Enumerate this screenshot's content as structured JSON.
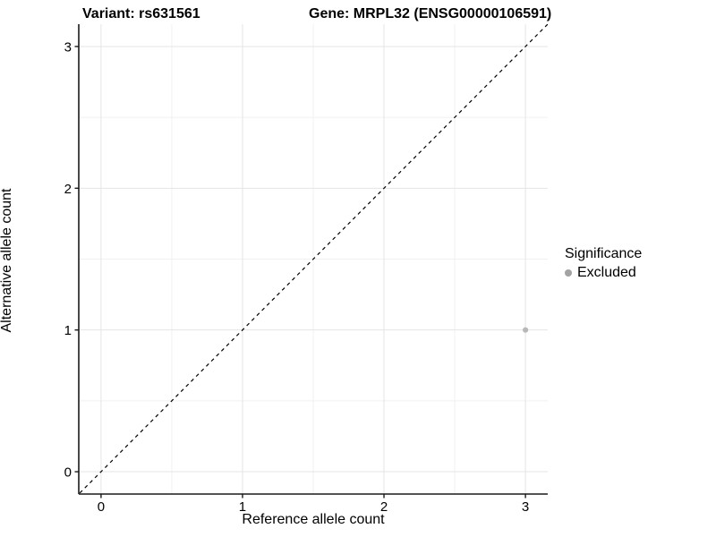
{
  "titles": {
    "variant": "Variant: rs631561",
    "gene": "Gene: MRPL32 (ENSG00000106591)"
  },
  "chart_data": {
    "type": "scatter",
    "title": "Variant: rs631561 | Gene: MRPL32 (ENSG00000106591)",
    "xlabel": "Reference allele count",
    "ylabel": "Alternative allele count",
    "xlim": [
      -0.1575,
      3.1575
    ],
    "ylim": [
      -0.1575,
      3.1575
    ],
    "x_ticks": [
      0,
      1,
      2,
      3
    ],
    "y_ticks": [
      0,
      1,
      2,
      3
    ],
    "minor_ticks": [
      0.5,
      1.5,
      2.5
    ],
    "grid": "major+minor",
    "identity_line": {
      "slope": 1,
      "intercept": 0,
      "style": "dashed",
      "color": "#000000"
    },
    "series": [
      {
        "name": "Excluded",
        "color": "#b8b8b8",
        "points": [
          {
            "x": 3,
            "y": 1
          }
        ]
      }
    ],
    "legend": {
      "title": "Significance",
      "position": "right",
      "items": [
        {
          "label": "Excluded",
          "color": "#a3a3a3"
        }
      ]
    },
    "colors": {
      "axis_line": "#1a1a1a",
      "grid_major": "#e5e5e5",
      "grid_minor": "#f1f1f1"
    }
  }
}
